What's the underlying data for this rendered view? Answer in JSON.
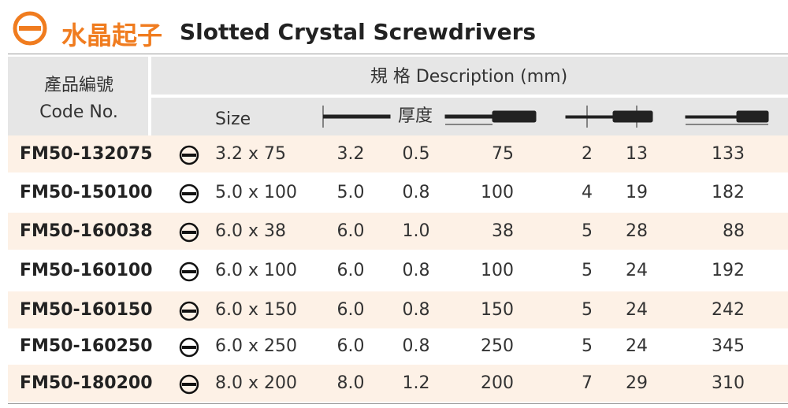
{
  "header": {
    "title_zh": "水晶起子",
    "title_en": "Slotted Crystal Screwdrivers"
  },
  "table": {
    "code_header_zh": "產品編號",
    "code_header_en": "Code No.",
    "spec_header": "規 格  Description (mm)",
    "size_header": "Size",
    "thickness_header": "厚度",
    "rows": [
      [
        "FM50-132075",
        "3.2 x 75",
        "3.2",
        "0.5",
        "75",
        "2",
        "13",
        "133"
      ],
      [
        "FM50-150100",
        "5.0 x 100",
        "5.0",
        "0.8",
        "100",
        "4",
        "19",
        "182"
      ],
      [
        "FM50-160038",
        "6.0 x 38",
        "6.0",
        "1.0",
        "38",
        "5",
        "28",
        "88"
      ],
      [
        "FM50-160100",
        "6.0 x 100",
        "6.0",
        "0.8",
        "100",
        "5",
        "24",
        "192"
      ],
      [
        "FM50-160150",
        "6.0 x 150",
        "6.0",
        "0.8",
        "150",
        "5",
        "24",
        "242"
      ],
      [
        "FM50-160250",
        "6.0 x 250",
        "6.0",
        "0.8",
        "250",
        "5",
        "24",
        "345"
      ],
      [
        "FM50-180200",
        "8.0 x 200",
        "8.0",
        "1.2",
        "200",
        "7",
        "29",
        "310"
      ]
    ]
  }
}
